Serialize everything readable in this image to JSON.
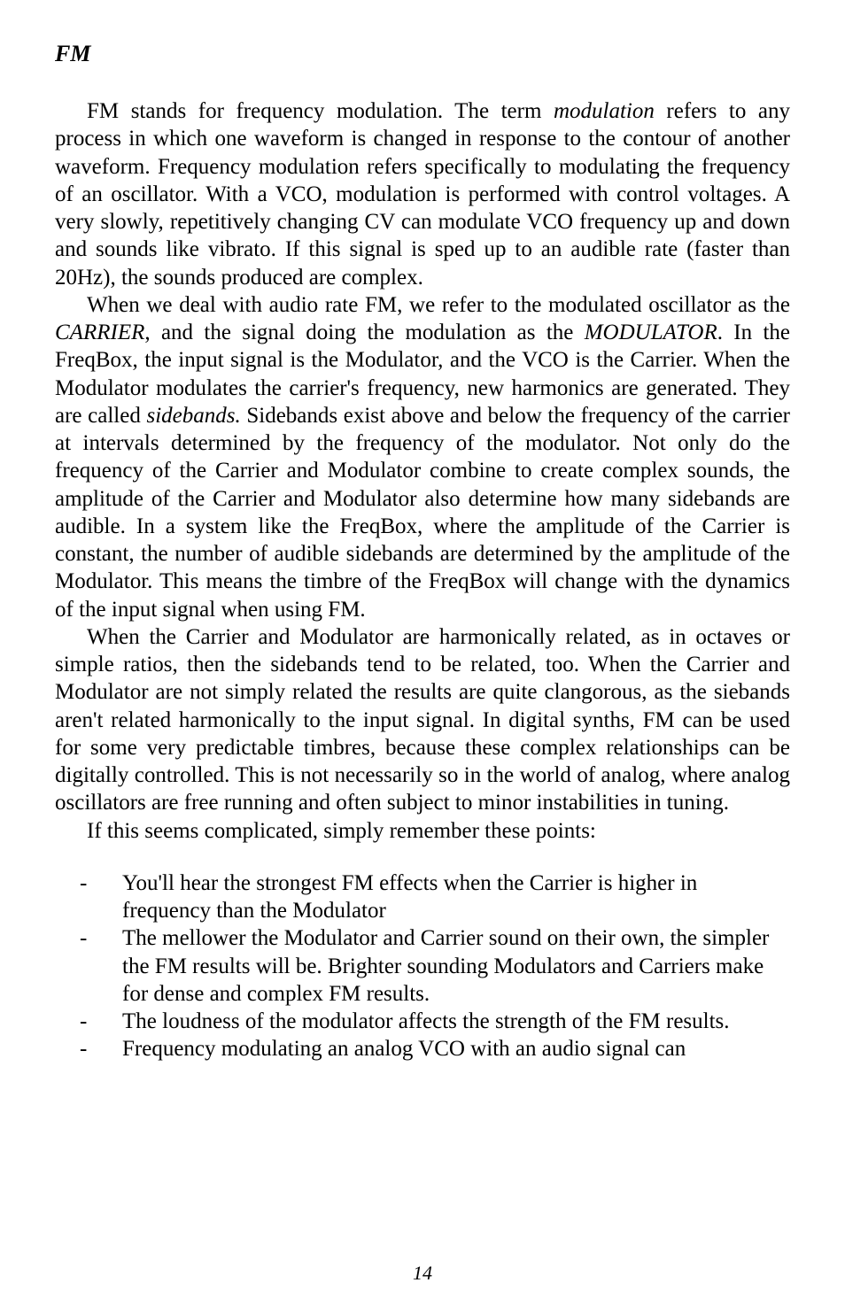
{
  "heading": "FM",
  "paragraphs": {
    "p1_pre": "FM stands for frequency modulation. The term ",
    "p1_ital1": "modulation",
    "p1_post": " refers to any process in which one waveform is changed in response to the contour of another waveform. Frequency modulation refers specifically to modulating the frequency of an oscillator. With a VCO, modulation is performed with control voltages. A very slowly, repetitively changing CV can modulate VCO frequency up and down and sounds like vibrato. If this signal is sped up to an audible rate (faster than 20Hz), the sounds produced are complex.",
    "p2_a": " When we deal with audio rate FM, we refer to the modulated oscillator as the ",
    "p2_ital1": "CARRIER",
    "p2_b": ", and the signal doing the modulation as the ",
    "p2_ital2": "MODULATOR",
    "p2_c": ". In the FreqBox, the input signal is the Modulator, and the VCO is the Carrier. When the Modulator modulates the carrier's frequency, new harmonics are generated. They are called ",
    "p2_ital3": "sidebands.",
    "p2_d": " Sidebands exist above and below the frequency of the carrier at intervals determined by the frequency of the modulator. Not only do the frequency of the Carrier and Modulator combine to create complex sounds, the amplitude of the Carrier and Modulator also determine how many sidebands are audible. In a system like the FreqBox, where the amplitude of the Carrier is constant, the number of audible sidebands are determined by the amplitude of the Modulator. This means the timbre of the FreqBox will change with the dynamics of the input signal when using FM.",
    "p3": "When the Carrier and Modulator are harmonically related, as in octaves or simple ratios, then the sidebands tend to be related, too. When the Carrier and Modulator are not simply related the results are quite clangorous, as the siebands aren't related harmonically to the input signal.  In digital synths, FM can be used for some very predictable timbres, because these complex relationships can be digitally controlled. This is not necessarily so in the world of analog, where analog oscillators are free running and often subject to minor instabilities in tuning.",
    "p4": "If this seems complicated, simply remember these points:"
  },
  "list": {
    "items": [
      "You'll hear the strongest FM effects when the Carrier is higher in frequency than the Modulator",
      "The mellower the Modulator and Carrier sound on their own, the simpler the FM results will be. Brighter sounding Modulators and Carriers make for dense and complex FM results.",
      "The loudness of the modulator affects the strength of the FM results.",
      "Frequency modulating an analog VCO with an audio signal can"
    ],
    "dash": "-"
  },
  "pageNumber": "14",
  "colors": {
    "background": "#ffffff",
    "text": "#000000"
  },
  "typography": {
    "body_fontsize": 25,
    "heading_fontsize": 26,
    "pagenum_fontsize": 22,
    "line_height": 1.25,
    "font_family": "Georgia, Times New Roman, serif"
  }
}
